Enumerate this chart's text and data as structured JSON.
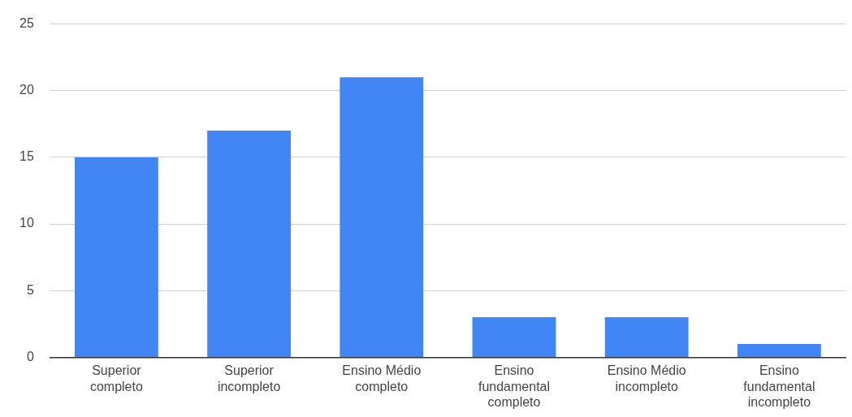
{
  "chart_data": {
    "type": "bar",
    "categories": [
      "Superior completo",
      "Superior incompleto",
      "Ensino Médio completo",
      "Ensino fundamental completo",
      "Ensino Médio incompleto",
      "Ensino fundamental incompleto"
    ],
    "values": [
      15,
      17,
      21,
      3,
      3,
      1
    ],
    "color": "#4285f4",
    "ylim": [
      0,
      25
    ],
    "yticks": [
      0,
      5,
      10,
      15,
      20,
      25
    ],
    "grid": "y",
    "legend": false
  }
}
